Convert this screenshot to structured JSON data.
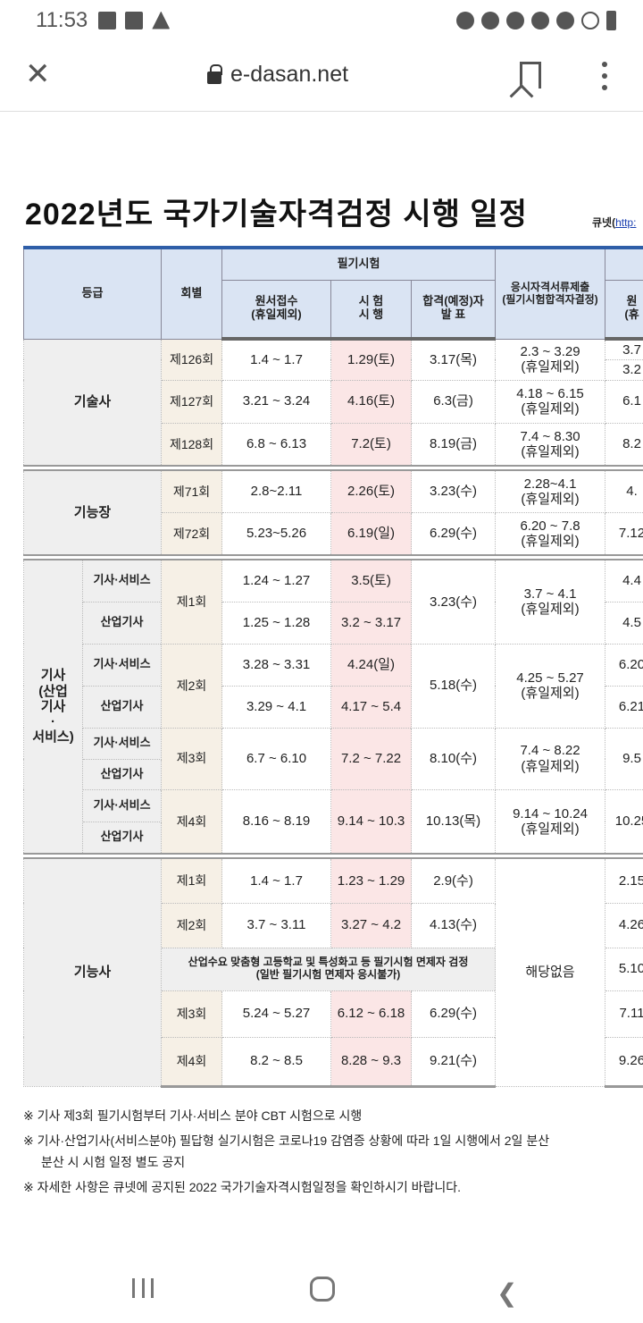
{
  "status_bar": {
    "time": "11:53"
  },
  "browser": {
    "url": "e-dasan.net"
  },
  "page": {
    "title": "2022년도 국가기술자격검정 시행 일정",
    "source_prefix": "큐넷(",
    "source_link": "http:"
  },
  "table": {
    "headers": {
      "grade": "등급",
      "round": "회별",
      "written": "필기시험",
      "apply": "원서접수\n(휴일제외)",
      "exam": "시 험\n시 행",
      "announce": "합격(예정)자\n발    표",
      "docs": "응시자격서류제출\n(필기시험합격자결정)",
      "practical_apply": "원\n(휴"
    },
    "gisulsa": {
      "grade": "기술사",
      "rows": [
        {
          "round": "제126회",
          "apply": "1.4 ~ 1.7",
          "exam": "1.29(토)",
          "announce": "3.17(목)",
          "docs": "2.3 ~ 3.29\n(휴일제외)",
          "practical_a": "3.7",
          "practical_b": "3.2"
        },
        {
          "round": "제127회",
          "apply": "3.21 ~ 3.24",
          "exam": "4.16(토)",
          "announce": "6.3(금)",
          "docs": "4.18 ~ 6.15\n(휴일제외)",
          "practical": "6.1"
        },
        {
          "round": "제128회",
          "apply": "6.8 ~ 6.13",
          "exam": "7.2(토)",
          "announce": "8.19(금)",
          "docs": "7.4 ~ 8.30\n(휴일제외)",
          "practical": "8.2"
        }
      ]
    },
    "gineungjang": {
      "grade": "기능장",
      "rows": [
        {
          "round": "제71회",
          "apply": "2.8~2.11",
          "exam": "2.26(토)",
          "announce": "3.23(수)",
          "docs": "2.28~4.1\n(휴일제외)",
          "practical": "4."
        },
        {
          "round": "제72회",
          "apply": "5.23~5.26",
          "exam": "6.19(일)",
          "announce": "6.29(수)",
          "docs": "6.20 ~ 7.8\n(휴일제외)",
          "practical": "7.12"
        }
      ]
    },
    "gisa": {
      "grade": "기사\n(산업\n기사\n·\n서비스)",
      "sub_service": "기사·서비스",
      "sub_industrial": "산업기사",
      "rounds": [
        {
          "round": "제1회",
          "apply_s": "1.24 ~ 1.27",
          "exam_s": "3.5(토)",
          "apply_i": "1.25 ~ 1.28",
          "exam_i": "3.2 ~ 3.17",
          "announce": "3.23(수)",
          "docs": "3.7 ~ 4.1\n(휴일제외)",
          "practical_s": "4.4",
          "practical_i": "4.5"
        },
        {
          "round": "제2회",
          "apply_s": "3.28 ~ 3.31",
          "exam_s": "4.24(일)",
          "apply_i": "3.29 ~ 4.1",
          "exam_i": "4.17 ~ 5.4",
          "announce": "5.18(수)",
          "docs": "4.25 ~ 5.27\n(휴일제외)",
          "practical_s": "6.20",
          "practical_i": "6.21"
        },
        {
          "round": "제3회",
          "apply": "6.7 ~ 6.10",
          "exam": "7.2 ~ 7.22",
          "announce": "8.10(수)",
          "docs": "7.4 ~ 8.22\n(휴일제외)",
          "practical": "9.5"
        },
        {
          "round": "제4회",
          "apply": "8.16 ~ 8.19",
          "exam": "9.14 ~ 10.3",
          "announce": "10.13(목)",
          "docs": "9.14 ~ 10.24\n(휴일제외)",
          "practical": "10.25"
        }
      ]
    },
    "gineungsa": {
      "grade": "기능사",
      "docs": "해당없음",
      "special": "산업수요 맞춤형 고등학교 및 특성화고 등 필기시험 면제자 검정\n(일반 필기시험 면제자 응시불가)",
      "special_practical": "5.10",
      "rows": [
        {
          "round": "제1회",
          "apply": "1.4 ~ 1.7",
          "exam": "1.23 ~ 1.29",
          "announce": "2.9(수)",
          "practical": "2.15"
        },
        {
          "round": "제2회",
          "apply": "3.7 ~ 3.11",
          "exam": "3.27 ~ 4.2",
          "announce": "4.13(수)",
          "practical": "4.26"
        },
        {
          "round": "제3회",
          "apply": "5.24 ~ 5.27",
          "exam": "6.12 ~ 6.18",
          "announce": "6.29(수)",
          "practical": "7.11"
        },
        {
          "round": "제4회",
          "apply": "8.2 ~ 8.5",
          "exam": "8.28 ~ 9.3",
          "announce": "9.21(수)",
          "practical": "9.26"
        }
      ]
    }
  },
  "notes": [
    "※  기사 제3회 필기시험부터 기사·서비스 분야 CBT 시험으로 시행",
    "※  기사·산업기사(서비스분야) 필답형 실기시험은 코로나19 감염증 상황에 따라 1일 시행에서 2일 분산",
    "분산 시 시험 일정 별도 공지",
    "※  자세한 사항은 큐넷에 공지된 2022 국가기술자격시험일정을 확인하시기 바랍니다."
  ]
}
